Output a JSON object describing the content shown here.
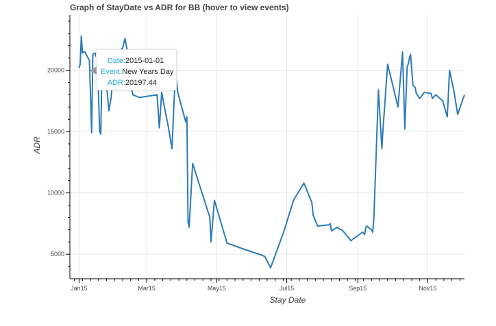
{
  "chart_data": {
    "type": "line",
    "title": "Graph of StayDate vs ADR for BB (hover to view events)",
    "xlabel": "Stay Date",
    "ylabel": "ADR",
    "x_ticks": [
      "Jan15",
      "Mar15",
      "May15",
      "Jul15",
      "Sep15",
      "Nov15"
    ],
    "y_ticks": [
      "5000",
      "10000",
      "15000",
      "20000"
    ],
    "xlim": [
      "2014-12-24",
      "2015-12-03"
    ],
    "ylim": [
      3000,
      24500
    ],
    "grid": true,
    "line_color": "#2b7bb9",
    "series": [
      {
        "x": [
          "2015-01-01",
          "2015-01-02",
          "2015-01-03",
          "2015-01-04",
          "2015-01-05",
          "2015-01-06",
          "2015-01-10",
          "2015-01-12",
          "2015-01-13",
          "2015-01-15",
          "2015-01-17",
          "2015-01-19",
          "2015-01-20",
          "2015-01-21",
          "2015-01-23",
          "2015-01-27",
          "2015-01-29",
          "2015-02-01",
          "2015-02-04",
          "2015-02-08",
          "2015-02-10",
          "2015-02-12",
          "2015-02-14",
          "2015-02-17",
          "2015-02-22",
          "2015-02-24",
          "2015-03-10",
          "2015-03-12",
          "2015-03-14",
          "2015-03-16",
          "2015-03-20",
          "2015-03-23",
          "2015-03-26",
          "2015-03-28",
          "2015-04-04",
          "2015-04-05",
          "2015-04-06",
          "2015-04-07",
          "2015-04-10",
          "2015-04-25",
          "2015-04-26",
          "2015-04-29",
          "2015-05-10",
          "2015-05-25",
          "2015-06-10",
          "2015-06-12",
          "2015-06-17",
          "2015-06-28",
          "2015-07-07",
          "2015-07-16",
          "2015-07-23",
          "2015-07-24",
          "2015-07-28",
          "2015-08-07",
          "2015-08-08",
          "2015-08-09",
          "2015-08-14",
          "2015-08-17",
          "2015-08-18",
          "2015-08-20",
          "2015-08-26",
          "2015-09-05",
          "2015-09-07",
          "2015-09-08",
          "2015-09-09",
          "2015-09-10",
          "2015-09-13",
          "2015-09-14",
          "2015-09-15",
          "2015-09-19",
          "2015-09-22",
          "2015-09-23",
          "2015-09-27",
          "2015-10-06",
          "2015-10-10",
          "2015-10-12",
          "2015-10-14",
          "2015-10-15",
          "2015-10-16",
          "2015-10-17",
          "2015-10-19",
          "2015-10-21",
          "2015-10-22",
          "2015-10-25",
          "2015-10-29",
          "2015-11-04",
          "2015-11-05",
          "2015-11-08",
          "2015-11-14",
          "2015-11-18",
          "2015-11-20",
          "2015-11-24",
          "2015-11-27",
          "2015-12-03"
        ],
        "y": [
          20197.44,
          20500,
          22800,
          21400,
          21500,
          21500,
          20800,
          14900,
          21300,
          21400,
          20800,
          15000,
          14800,
          20800,
          21000,
          16700,
          17800,
          21400,
          21500,
          21800,
          22600,
          21600,
          19000,
          18000,
          17800,
          17800,
          18000,
          15300,
          18200,
          17200,
          15300,
          13600,
          19800,
          18200,
          15800,
          16200,
          7600,
          7200,
          12400,
          8000,
          6000,
          9400,
          5900,
          5400,
          4900,
          4800,
          3900,
          6700,
          9400,
          10800,
          9200,
          8200,
          7300,
          7400,
          7500,
          6900,
          7200,
          7000,
          7000,
          6800,
          6100,
          6800,
          6600,
          7200,
          7300,
          7200,
          7000,
          6800,
          7900,
          18400,
          13600,
          15200,
          20500,
          17000,
          21500,
          15200,
          20300,
          20500,
          21000,
          21300,
          18800,
          18600,
          18100,
          17700,
          18200,
          18100,
          17700,
          18000,
          17500,
          16200,
          20000,
          18200,
          16400,
          18000
        ]
      }
    ]
  },
  "tooltip": {
    "date_key": "Date:",
    "date_value": "2015-01-01",
    "event_key": "Event:",
    "event_value": "New Years Day",
    "adr_key": "ADR:",
    "adr_value": "20197.44"
  }
}
